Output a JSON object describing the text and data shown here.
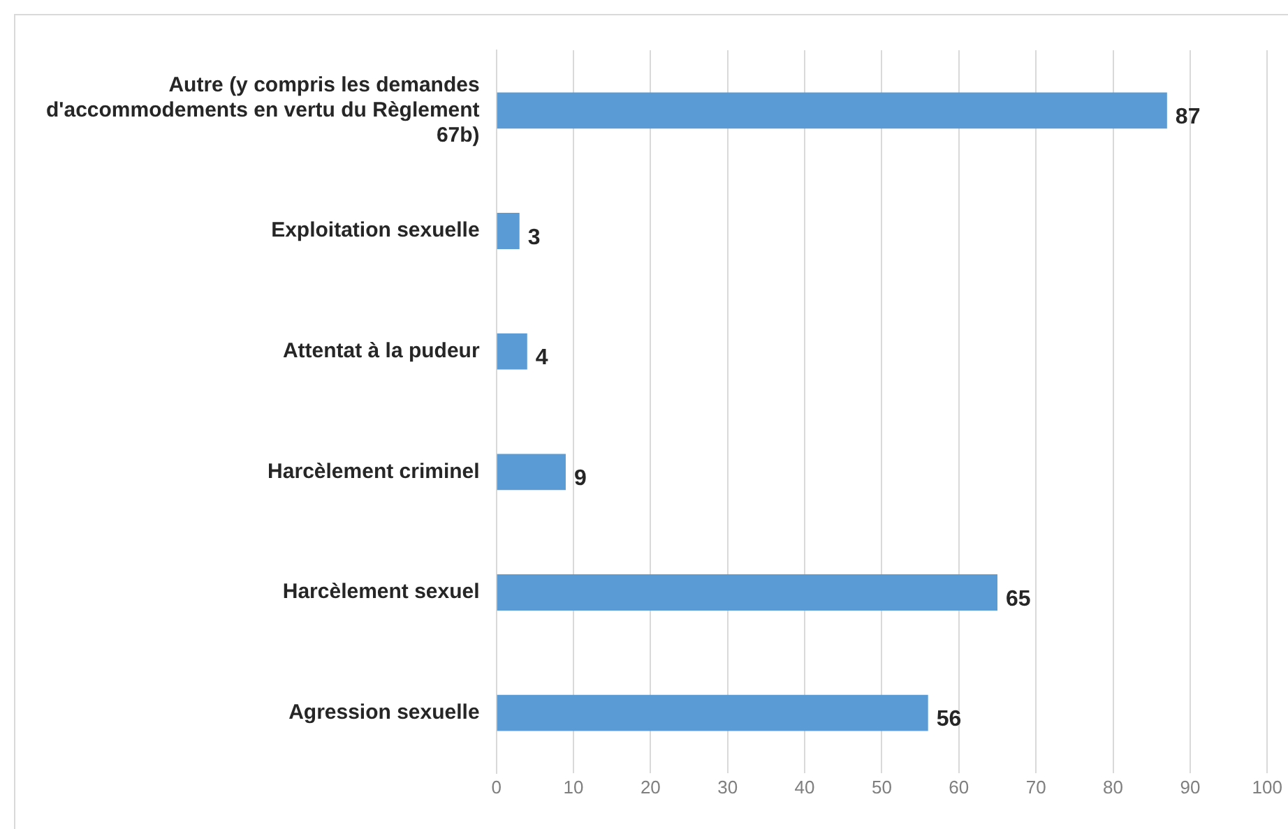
{
  "chart_data": {
    "type": "bar",
    "orientation": "horizontal",
    "categories": [
      "Autre (y compris les demandes d'accommodements en vertu du Règlement 67b)",
      "Exploitation sexuelle",
      "Attentat à la pudeur",
      "Harcèlement criminel",
      "Harcèlement sexuel",
      "Agression sexuelle"
    ],
    "values": [
      87,
      3,
      4,
      9,
      65,
      56
    ],
    "color": "#5b9bd5",
    "xlim": [
      0,
      100
    ],
    "xticks": [
      0,
      10,
      20,
      30,
      40,
      50,
      60,
      70,
      80,
      90,
      100
    ],
    "grid": "x",
    "data_labels": true,
    "legend": false
  }
}
